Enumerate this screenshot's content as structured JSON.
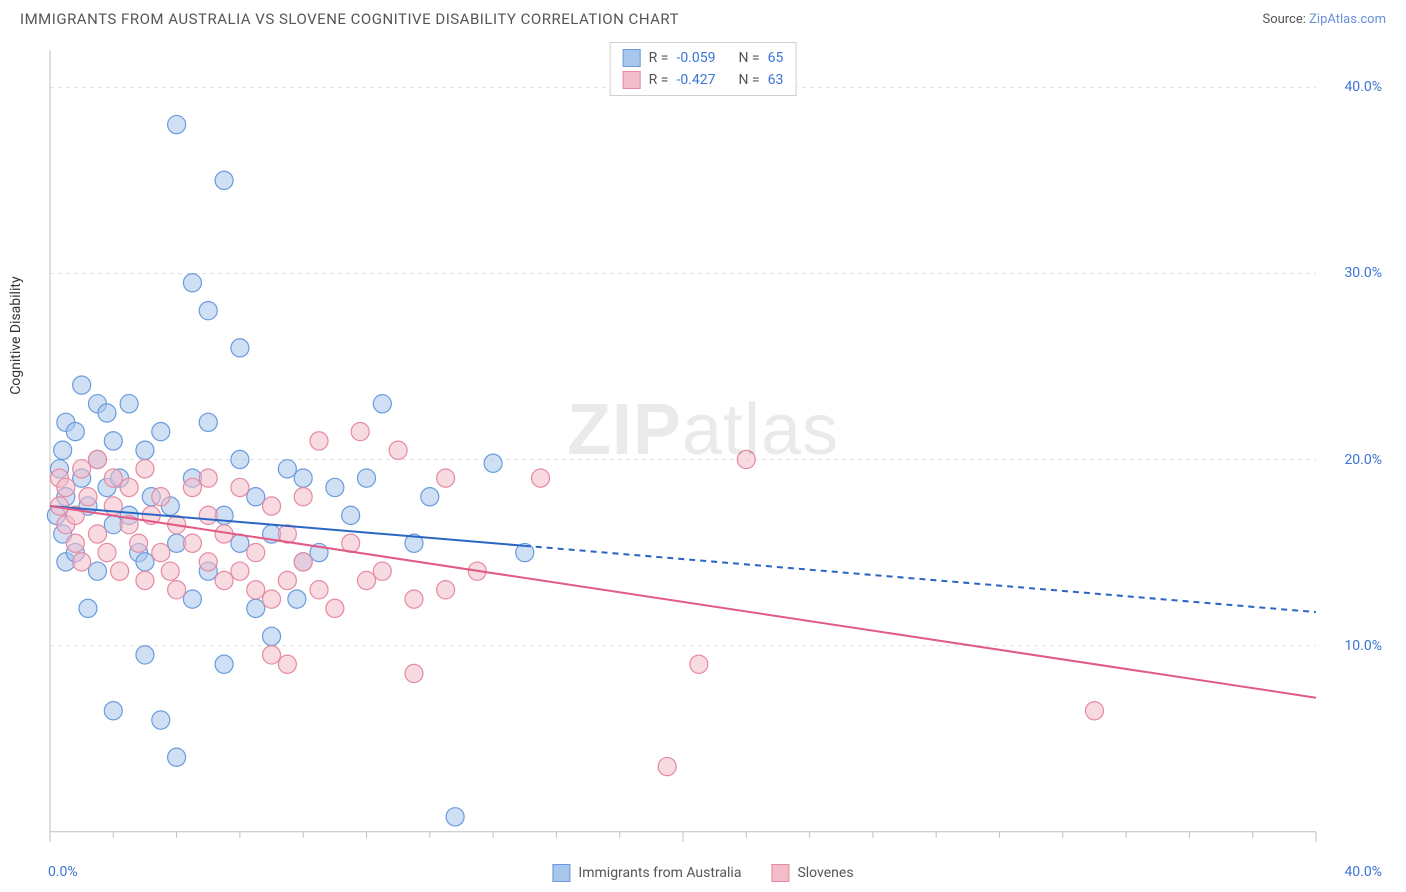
{
  "title": "IMMIGRANTS FROM AUSTRALIA VS SLOVENE COGNITIVE DISABILITY CORRELATION CHART",
  "source_prefix": "Source: ",
  "source_link": "ZipAtlas.com",
  "ylabel": "Cognitive Disability",
  "watermark_a": "ZIP",
  "watermark_b": "atlas",
  "chart": {
    "type": "scatter",
    "background_color": "#ffffff",
    "grid_color": "#e0e0e0",
    "border_color": "#bfbfbf",
    "xlim": [
      0,
      40
    ],
    "ylim": [
      0,
      42
    ],
    "x_tick_major": [
      0,
      20,
      40
    ],
    "x_tick_minor_step": 2,
    "y_ticks": [
      10,
      20,
      30,
      40
    ],
    "y_tick_labels": [
      "10.0%",
      "20.0%",
      "30.0%",
      "40.0%"
    ],
    "x_min_label": "0.0%",
    "x_max_label": "40.0%",
    "marker_radius": 9,
    "marker_opacity": 0.55,
    "marker_stroke_width": 1.2,
    "line_width": 2,
    "series": [
      {
        "id": "aus",
        "label": "Immigrants from Australia",
        "color_fill": "#a8c6ec",
        "color_stroke": "#6a9bdc",
        "line_color": "#2b66c4",
        "r_value": "-0.059",
        "n_value": "65",
        "regression": {
          "x1": 0,
          "y1": 17.5,
          "x2": 40,
          "y2": 11.8,
          "solid_until_x": 15
        },
        "points": [
          [
            0.2,
            17.0
          ],
          [
            0.3,
            19.5
          ],
          [
            0.4,
            16.0
          ],
          [
            0.4,
            20.5
          ],
          [
            0.5,
            14.5
          ],
          [
            0.5,
            18.0
          ],
          [
            0.5,
            22.0
          ],
          [
            0.8,
            15.0
          ],
          [
            0.8,
            21.5
          ],
          [
            1.0,
            19.0
          ],
          [
            1.0,
            24.0
          ],
          [
            1.2,
            17.5
          ],
          [
            1.2,
            12.0
          ],
          [
            1.5,
            20.0
          ],
          [
            1.5,
            23.0
          ],
          [
            1.5,
            14.0
          ],
          [
            1.8,
            18.5
          ],
          [
            1.8,
            22.5
          ],
          [
            2.0,
            16.5
          ],
          [
            2.0,
            21.0
          ],
          [
            2.0,
            6.5
          ],
          [
            2.2,
            19.0
          ],
          [
            2.5,
            17.0
          ],
          [
            2.5,
            23.0
          ],
          [
            2.8,
            15.0
          ],
          [
            3.0,
            20.5
          ],
          [
            3.0,
            14.5
          ],
          [
            3.0,
            9.5
          ],
          [
            3.2,
            18.0
          ],
          [
            3.5,
            21.5
          ],
          [
            3.5,
            6.0
          ],
          [
            3.8,
            17.5
          ],
          [
            4.0,
            15.5
          ],
          [
            4.0,
            38.0
          ],
          [
            4.0,
            4.0
          ],
          [
            4.5,
            29.5
          ],
          [
            4.5,
            19.0
          ],
          [
            4.5,
            12.5
          ],
          [
            5.0,
            22.0
          ],
          [
            5.0,
            14.0
          ],
          [
            5.0,
            28.0
          ],
          [
            5.5,
            35.0
          ],
          [
            5.5,
            17.0
          ],
          [
            5.5,
            9.0
          ],
          [
            6.0,
            20.0
          ],
          [
            6.0,
            15.5
          ],
          [
            6.0,
            26.0
          ],
          [
            6.5,
            18.0
          ],
          [
            6.5,
            12.0
          ],
          [
            7.0,
            16.0
          ],
          [
            7.0,
            10.5
          ],
          [
            7.8,
            12.5
          ],
          [
            7.5,
            19.5
          ],
          [
            8.0,
            14.5
          ],
          [
            8.0,
            19.0
          ],
          [
            8.5,
            15.0
          ],
          [
            9.0,
            18.5
          ],
          [
            9.5,
            17.0
          ],
          [
            10.0,
            19.0
          ],
          [
            10.5,
            23.0
          ],
          [
            11.5,
            15.5
          ],
          [
            12.0,
            18.0
          ],
          [
            12.8,
            0.8
          ],
          [
            14.0,
            19.8
          ],
          [
            15.0,
            15.0
          ]
        ]
      },
      {
        "id": "slo",
        "label": "Slovenes",
        "color_fill": "#f2bcc9",
        "color_stroke": "#e68aa3",
        "line_color": "#e25a86",
        "r_value": "-0.427",
        "n_value": "63",
        "regression": {
          "x1": 0,
          "y1": 17.5,
          "x2": 40,
          "y2": 7.2,
          "solid_until_x": 40
        },
        "points": [
          [
            0.3,
            17.5
          ],
          [
            0.3,
            19.0
          ],
          [
            0.5,
            16.5
          ],
          [
            0.5,
            18.5
          ],
          [
            0.8,
            15.5
          ],
          [
            0.8,
            17.0
          ],
          [
            1.0,
            19.5
          ],
          [
            1.0,
            14.5
          ],
          [
            1.2,
            18.0
          ],
          [
            1.5,
            16.0
          ],
          [
            1.5,
            20.0
          ],
          [
            1.8,
            15.0
          ],
          [
            2.0,
            17.5
          ],
          [
            2.0,
            19.0
          ],
          [
            2.2,
            14.0
          ],
          [
            2.5,
            18.5
          ],
          [
            2.5,
            16.5
          ],
          [
            2.8,
            15.5
          ],
          [
            3.0,
            19.5
          ],
          [
            3.0,
            13.5
          ],
          [
            3.2,
            17.0
          ],
          [
            3.5,
            15.0
          ],
          [
            3.5,
            18.0
          ],
          [
            3.8,
            14.0
          ],
          [
            4.0,
            16.5
          ],
          [
            4.0,
            13.0
          ],
          [
            4.5,
            18.5
          ],
          [
            4.5,
            15.5
          ],
          [
            5.0,
            17.0
          ],
          [
            5.0,
            14.5
          ],
          [
            5.0,
            19.0
          ],
          [
            5.5,
            13.5
          ],
          [
            5.5,
            16.0
          ],
          [
            6.0,
            14.0
          ],
          [
            6.0,
            18.5
          ],
          [
            6.5,
            15.0
          ],
          [
            6.5,
            13.0
          ],
          [
            7.0,
            17.5
          ],
          [
            7.0,
            12.5
          ],
          [
            7.0,
            9.5
          ],
          [
            7.5,
            16.0
          ],
          [
            7.5,
            13.5
          ],
          [
            7.5,
            9.0
          ],
          [
            8.0,
            14.5
          ],
          [
            8.0,
            18.0
          ],
          [
            8.5,
            13.0
          ],
          [
            8.5,
            21.0
          ],
          [
            9.0,
            12.0
          ],
          [
            9.5,
            15.5
          ],
          [
            9.8,
            21.5
          ],
          [
            10.0,
            13.5
          ],
          [
            10.5,
            14.0
          ],
          [
            11.0,
            20.5
          ],
          [
            11.5,
            12.5
          ],
          [
            11.5,
            8.5
          ],
          [
            12.5,
            19.0
          ],
          [
            12.5,
            13.0
          ],
          [
            13.5,
            14.0
          ],
          [
            15.5,
            19.0
          ],
          [
            19.5,
            3.5
          ],
          [
            20.5,
            9.0
          ],
          [
            22.0,
            20.0
          ],
          [
            33.0,
            6.5
          ]
        ]
      }
    ],
    "legend_bottom": [
      {
        "label": "Immigrants from Australia",
        "fill": "#a8c6ec",
        "stroke": "#6a9bdc"
      },
      {
        "label": "Slovenes",
        "fill": "#f2bcc9",
        "stroke": "#e68aa3"
      }
    ]
  }
}
